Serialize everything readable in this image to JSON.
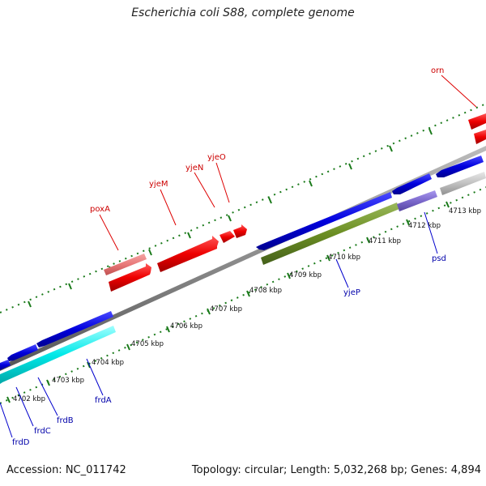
{
  "title": "Escherichia coli S88, complete genome",
  "footer": {
    "accession": "Accession: NC_011742",
    "summary": "Topology: circular; Length: 5,032,268 bp; Genes: 4,894"
  },
  "colors": {
    "forward_gene": "#ee0000",
    "forward_light": "#e87878",
    "reverse_gene": "#0000dd",
    "rrna_like": "#00e8e8",
    "olive": "#6b8e23",
    "lavender": "#7b68cc",
    "grey_gene": "#c0c0c0",
    "backbone": "#8c8c8c",
    "tick": "#1a7a1a",
    "forward_label": "#cc0000",
    "reverse_label": "#0000aa"
  },
  "tick_labels": [
    "4702 kbp",
    "4703 kbp",
    "4704 kbp",
    "4705 kbp",
    "4706 kbp",
    "4707 kbp",
    "4708 kbp",
    "4709 kbp",
    "4710 kbp",
    "4711 kbp",
    "4712 kbp",
    "4713 kbp"
  ],
  "forward_labels": [
    "orn",
    "poxA",
    "yjeM",
    "yjeN",
    "yjeO"
  ],
  "reverse_labels": [
    "frdA",
    "frdB",
    "frdC",
    "frdD",
    "yjeP",
    "psd"
  ]
}
